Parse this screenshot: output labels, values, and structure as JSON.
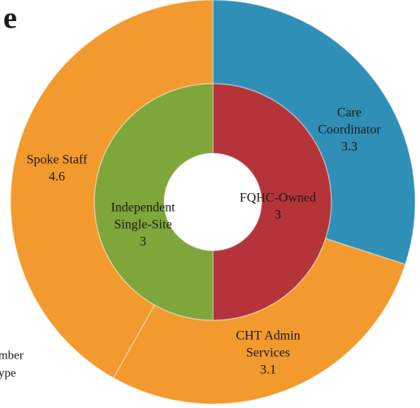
{
  "chart_data": {
    "type": "donut",
    "title": "e",
    "note": [
      "mber",
      "ype"
    ],
    "rings": [
      {
        "categories": [
          [
            "FQHC-Owned"
          ],
          [
            "Independent",
            "Single-Site"
          ]
        ],
        "values": [
          3,
          3
        ],
        "colors": [
          "#b5343a",
          "#7ea63a"
        ]
      },
      {
        "categories": [
          [
            "Care",
            "Coordinator"
          ],
          [
            "CHT Admin",
            "Services"
          ],
          [
            "Spoke Staff"
          ]
        ],
        "values": [
          3.3,
          3.1,
          4.6
        ],
        "colors": [
          "#2f8fb6",
          "#f29a2e",
          "#f29a2e"
        ]
      }
    ]
  }
}
